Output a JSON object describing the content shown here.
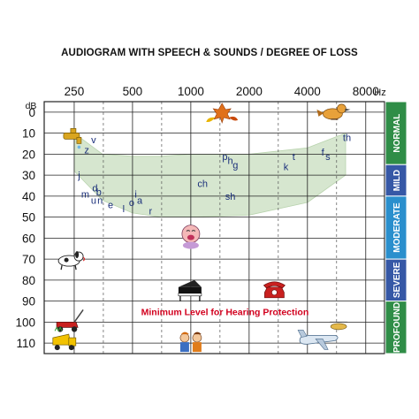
{
  "title": "AUDIOGRAM WITH SPEECH & SOUNDS / DEGREE OF LOSS",
  "chart_data": {
    "type": "audiogram",
    "title": "AUDIOGRAM WITH SPEECH & SOUNDS / DEGREE OF LOSS",
    "x_scale": "log2",
    "x_ticks": [
      250,
      500,
      1000,
      2000,
      4000,
      8000
    ],
    "x_tick_labels": [
      "250",
      "500",
      "1000",
      "2000",
      "4000",
      "8000"
    ],
    "x_unit": "Hz",
    "xlim": [
      175,
      10000
    ],
    "y_unit": "dB",
    "ylim": [
      -5,
      115
    ],
    "y_ticks": [
      0,
      10,
      20,
      30,
      40,
      50,
      60,
      70,
      80,
      90,
      100,
      110
    ],
    "y_tick_labels": [
      "0",
      "10",
      "20",
      "30",
      "40",
      "50",
      "60",
      "70",
      "80",
      "90",
      "100",
      "110"
    ],
    "y_inverted": true,
    "grid": true,
    "speech_banana": {
      "color": "#d6e6cf",
      "upper": [
        [
          250,
          10
        ],
        [
          350,
          20
        ],
        [
          500,
          21
        ],
        [
          700,
          21
        ],
        [
          1000,
          20
        ],
        [
          2000,
          20
        ],
        [
          4000,
          17
        ],
        [
          6300,
          10
        ]
      ],
      "lower": [
        [
          250,
          28
        ],
        [
          350,
          42
        ],
        [
          500,
          48
        ],
        [
          700,
          50
        ],
        [
          1000,
          50
        ],
        [
          2000,
          49
        ],
        [
          4000,
          43
        ],
        [
          6300,
          30
        ]
      ]
    },
    "phonemes": [
      {
        "label": "z",
        "x": 290,
        "y": 18
      },
      {
        "label": "v",
        "x": 315,
        "y": 13
      },
      {
        "label": "j",
        "x": 265,
        "y": 30
      },
      {
        "label": "d",
        "x": 320,
        "y": 36
      },
      {
        "label": "b",
        "x": 335,
        "y": 38
      },
      {
        "label": "m",
        "x": 285,
        "y": 39
      },
      {
        "label": "u",
        "x": 315,
        "y": 42
      },
      {
        "label": "n",
        "x": 340,
        "y": 42
      },
      {
        "label": "e",
        "x": 385,
        "y": 44
      },
      {
        "label": "l",
        "x": 450,
        "y": 46
      },
      {
        "label": "i",
        "x": 520,
        "y": 39
      },
      {
        "label": "o",
        "x": 495,
        "y": 43
      },
      {
        "label": "a",
        "x": 545,
        "y": 42
      },
      {
        "label": "r",
        "x": 620,
        "y": 47
      },
      {
        "label": "ch",
        "x": 1150,
        "y": 34
      },
      {
        "label": "sh",
        "x": 1600,
        "y": 40
      },
      {
        "label": "p",
        "x": 1500,
        "y": 21
      },
      {
        "label": "h",
        "x": 1600,
        "y": 23
      },
      {
        "label": "g",
        "x": 1700,
        "y": 25
      },
      {
        "label": "k",
        "x": 3100,
        "y": 26
      },
      {
        "label": "t",
        "x": 3400,
        "y": 21
      },
      {
        "label": "f",
        "x": 4800,
        "y": 19
      },
      {
        "label": "s",
        "x": 5100,
        "y": 21
      },
      {
        "label": "th",
        "x": 6400,
        "y": 12
      }
    ],
    "annotations": [
      {
        "text": "Minimum Level for Hearing Protection",
        "x": 1500,
        "y": 95,
        "color": "#d2001e"
      }
    ],
    "sounds": [
      {
        "icon": "faucet-icon",
        "x": 250,
        "y": 12
      },
      {
        "icon": "leaves-icon",
        "x": 1450,
        "y": 0
      },
      {
        "icon": "bird-icon",
        "x": 5400,
        "y": 0
      },
      {
        "icon": "dog-icon",
        "x": 235,
        "y": 70
      },
      {
        "icon": "baby-icon",
        "x": 1000,
        "y": 58
      },
      {
        "icon": "piano-icon",
        "x": 1000,
        "y": 85
      },
      {
        "icon": "telephone-icon",
        "x": 2700,
        "y": 85
      },
      {
        "icon": "lawnmower-icon",
        "x": 235,
        "y": 100
      },
      {
        "icon": "truck-icon",
        "x": 220,
        "y": 110
      },
      {
        "icon": "people-icon",
        "x": 1000,
        "y": 110
      },
      {
        "icon": "airplane-icon",
        "x": 4600,
        "y": 108
      }
    ],
    "degree_of_loss": [
      {
        "label": "NORMAL",
        "from": -5,
        "to": 25,
        "color": "#2f8d47"
      },
      {
        "label": "MILD",
        "from": 25,
        "to": 40,
        "color": "#3658a6"
      },
      {
        "label": "MODERATE",
        "from": 40,
        "to": 70,
        "color": "#2a8fcd"
      },
      {
        "label": "SEVERE",
        "from": 70,
        "to": 90,
        "color": "#3658a6"
      },
      {
        "label": "PROFOUND",
        "from": 90,
        "to": 115,
        "color": "#2f8d47"
      }
    ]
  }
}
